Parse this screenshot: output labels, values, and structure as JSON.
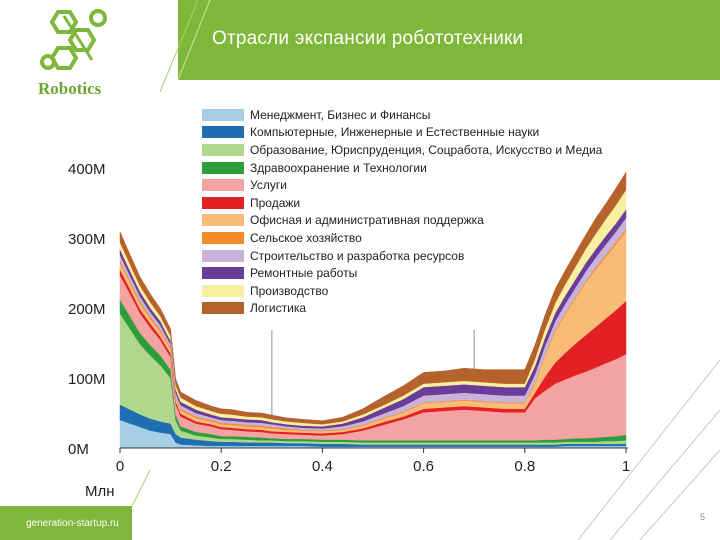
{
  "slide": {
    "title": "Отрасли экспансии робототехники",
    "logo_text": "Robotics",
    "footer_site": "generation-startup.ru",
    "page_number": "5",
    "colors": {
      "accent": "#7fb73a",
      "logo": "#6aa42e"
    }
  },
  "chart_data": {
    "type": "area",
    "stacked": true,
    "xlabel": "Млн",
    "ylabel": "",
    "xlim": [
      0,
      1
    ],
    "ylim": [
      0,
      400
    ],
    "x_ticks": [
      "0",
      "0.2",
      "0.4",
      "0.6",
      "0.8",
      "1"
    ],
    "y_ticks": [
      "0M",
      "100M",
      "200M",
      "300M",
      "400M"
    ],
    "reference_lines_x": [
      0.3,
      0.7
    ],
    "legend_position": "top",
    "x": [
      0,
      0.02,
      0.04,
      0.06,
      0.08,
      0.1,
      0.11,
      0.12,
      0.15,
      0.18,
      0.2,
      0.22,
      0.25,
      0.28,
      0.3,
      0.33,
      0.36,
      0.4,
      0.44,
      0.48,
      0.52,
      0.56,
      0.6,
      0.64,
      0.68,
      0.72,
      0.76,
      0.8,
      0.82,
      0.84,
      0.86,
      0.88,
      0.9,
      0.92,
      0.94,
      0.96,
      0.98,
      1.0
    ],
    "series": [
      {
        "name": "Менеджмент, Бизнес и Финансы",
        "color": "#a6cfe6",
        "values": [
          40,
          35,
          30,
          25,
          22,
          20,
          8,
          5,
          4,
          3,
          3,
          3,
          3,
          3,
          3,
          3,
          3,
          2,
          2,
          2,
          2,
          2,
          2,
          2,
          2,
          2,
          2,
          2,
          2,
          2,
          2,
          3,
          3,
          3,
          3,
          3,
          3,
          3
        ]
      },
      {
        "name": "Компьютерные, Инженерные и Естественные науки",
        "color": "#1f6eb4",
        "values": [
          22,
          20,
          18,
          17,
          16,
          15,
          12,
          10,
          8,
          7,
          6,
          6,
          5,
          5,
          5,
          4,
          4,
          4,
          4,
          3,
          3,
          3,
          3,
          3,
          3,
          3,
          3,
          3,
          3,
          3,
          3,
          3,
          3,
          3,
          3,
          3,
          3,
          3
        ]
      },
      {
        "name": "Образование, Юриспруденция, Соцработа, Искусство и Медиа",
        "color": "#b0d88d",
        "values": [
          130,
          115,
          100,
          90,
          80,
          65,
          20,
          10,
          6,
          5,
          4,
          4,
          4,
          3,
          3,
          3,
          3,
          3,
          3,
          3,
          3,
          3,
          3,
          3,
          3,
          3,
          3,
          3,
          3,
          3,
          3,
          3,
          3,
          3,
          3,
          4,
          4,
          5
        ]
      },
      {
        "name": "Здравоохранение и Технологии",
        "color": "#2e9e3c",
        "values": [
          20,
          18,
          16,
          15,
          14,
          12,
          8,
          6,
          5,
          5,
          4,
          4,
          4,
          4,
          3,
          3,
          3,
          3,
          3,
          3,
          3,
          3,
          3,
          3,
          3,
          3,
          3,
          3,
          3,
          4,
          4,
          4,
          5,
          5,
          6,
          6,
          7,
          8
        ]
      },
      {
        "name": "Услуги",
        "color": "#f4a3a3",
        "values": [
          35,
          32,
          28,
          25,
          22,
          18,
          15,
          14,
          12,
          11,
          10,
          9,
          8,
          8,
          7,
          7,
          6,
          6,
          8,
          14,
          22,
          30,
          40,
          42,
          44,
          42,
          40,
          40,
          60,
          70,
          80,
          85,
          90,
          95,
          100,
          105,
          110,
          115
        ]
      },
      {
        "name": "Продажи",
        "color": "#e32124",
        "values": [
          8,
          7,
          6,
          6,
          5,
          5,
          4,
          4,
          3,
          3,
          3,
          3,
          3,
          3,
          3,
          3,
          3,
          3,
          3,
          3,
          4,
          4,
          5,
          5,
          5,
          5,
          5,
          5,
          8,
          20,
          30,
          38,
          45,
          52,
          58,
          64,
          70,
          76
        ]
      },
      {
        "name": "Офисная и административная поддержка",
        "color": "#f9bc78",
        "values": [
          10,
          9,
          8,
          7,
          7,
          6,
          5,
          5,
          5,
          4,
          4,
          4,
          4,
          4,
          4,
          3,
          3,
          3,
          3,
          4,
          5,
          6,
          8,
          8,
          8,
          8,
          8,
          8,
          12,
          30,
          45,
          55,
          65,
          75,
          82,
          88,
          94,
          100
        ]
      },
      {
        "name": "Сельское хозяйство",
        "color": "#f58a2a",
        "values": [
          3,
          3,
          3,
          3,
          3,
          2,
          2,
          2,
          2,
          2,
          2,
          2,
          2,
          2,
          2,
          2,
          1,
          1,
          1,
          1,
          1,
          1,
          1,
          1,
          1,
          1,
          1,
          1,
          2,
          2,
          2,
          2,
          2,
          2,
          3,
          3,
          3,
          3
        ]
      },
      {
        "name": "Строительство и разработка ресурсов",
        "color": "#c9b3da",
        "values": [
          8,
          7,
          7,
          6,
          6,
          5,
          5,
          5,
          5,
          4,
          4,
          4,
          4,
          4,
          4,
          3,
          3,
          3,
          4,
          5,
          6,
          8,
          10,
          10,
          10,
          10,
          10,
          10,
          12,
          12,
          12,
          13,
          13,
          14,
          14,
          15,
          15,
          16
        ]
      },
      {
        "name": "Ремонтные работы",
        "color": "#6a3d9a",
        "values": [
          8,
          7,
          7,
          6,
          6,
          5,
          5,
          5,
          5,
          4,
          4,
          4,
          4,
          4,
          3,
          3,
          3,
          3,
          4,
          6,
          8,
          10,
          12,
          12,
          12,
          12,
          12,
          12,
          12,
          12,
          12,
          12,
          12,
          12,
          12,
          12,
          12,
          12
        ]
      },
      {
        "name": "Производство",
        "color": "#f7f0a1",
        "values": [
          10,
          9,
          8,
          8,
          7,
          7,
          6,
          6,
          5,
          5,
          5,
          5,
          4,
          4,
          4,
          4,
          4,
          3,
          3,
          4,
          4,
          5,
          5,
          5,
          5,
          5,
          5,
          5,
          10,
          12,
          14,
          16,
          18,
          20,
          22,
          24,
          26,
          28
        ]
      },
      {
        "name": "Логистика",
        "color": "#b6622d",
        "values": [
          15,
          14,
          13,
          12,
          11,
          10,
          9,
          8,
          8,
          7,
          7,
          7,
          6,
          6,
          6,
          5,
          5,
          5,
          6,
          8,
          12,
          14,
          16,
          16,
          18,
          18,
          20,
          20,
          20,
          20,
          20,
          20,
          20,
          20,
          22,
          22,
          24,
          25
        ]
      }
    ]
  }
}
